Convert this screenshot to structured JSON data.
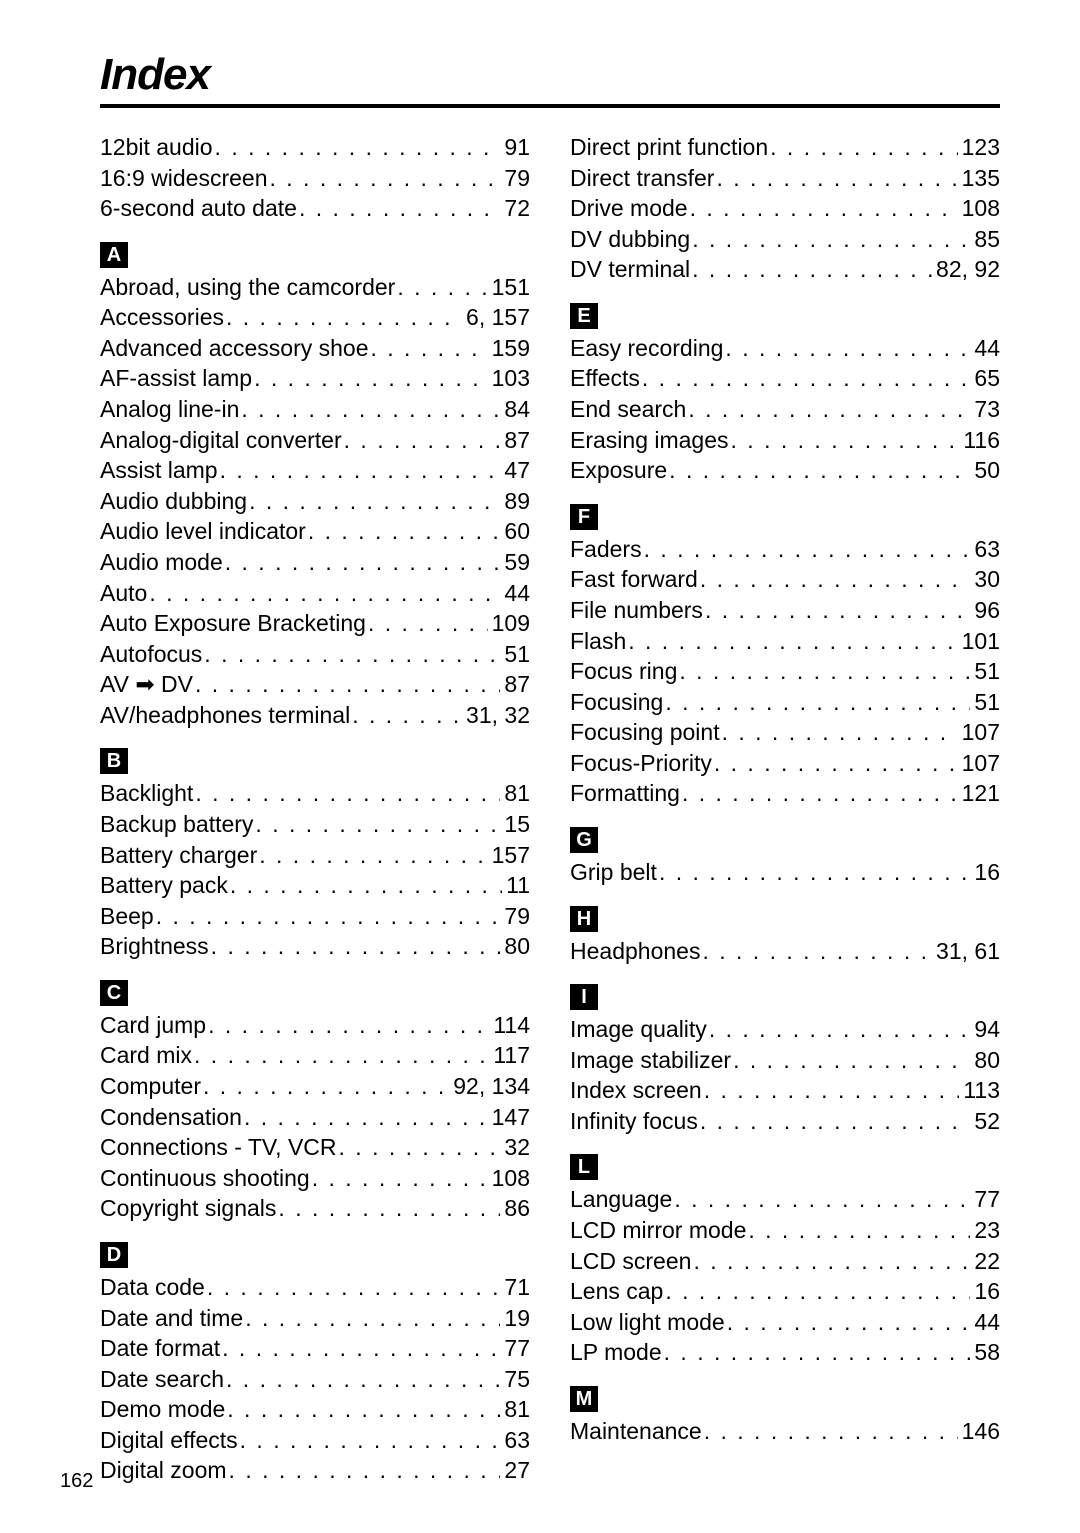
{
  "title": "Index",
  "pageNumber": "162",
  "columns": [
    {
      "groups": [
        {
          "letter": null,
          "entries": [
            {
              "term": "12bit audio",
              "page": "91"
            },
            {
              "term": "16:9 widescreen",
              "page": "79"
            },
            {
              "term": "6-second auto date",
              "page": "72"
            }
          ]
        },
        {
          "letter": "A",
          "entries": [
            {
              "term": "Abroad, using the camcorder",
              "page": "151"
            },
            {
              "term": "Accessories",
              "page": "6, 157"
            },
            {
              "term": "Advanced accessory shoe",
              "page": "159"
            },
            {
              "term": "AF-assist lamp",
              "page": "103"
            },
            {
              "term": "Analog line-in",
              "page": "84"
            },
            {
              "term": "Analog-digital converter",
              "page": "87"
            },
            {
              "term": "Assist lamp",
              "page": "47"
            },
            {
              "term": "Audio dubbing",
              "page": "89"
            },
            {
              "term": "Audio level indicator",
              "page": "60"
            },
            {
              "term": "Audio mode",
              "page": "59"
            },
            {
              "term": "Auto",
              "page": "44"
            },
            {
              "term": "Auto Exposure Bracketing",
              "page": "109"
            },
            {
              "term": "Autofocus",
              "page": "51"
            },
            {
              "term": "AV ➡ DV",
              "page": "87"
            },
            {
              "term": "AV/headphones terminal",
              "page": "31, 32"
            }
          ]
        },
        {
          "letter": "B",
          "entries": [
            {
              "term": "Backlight",
              "page": "81"
            },
            {
              "term": "Backup battery",
              "page": "15"
            },
            {
              "term": "Battery charger",
              "page": "157"
            },
            {
              "term": "Battery pack",
              "page": "11"
            },
            {
              "term": "Beep",
              "page": "79"
            },
            {
              "term": "Brightness",
              "page": "80"
            }
          ]
        },
        {
          "letter": "C",
          "entries": [
            {
              "term": "Card jump",
              "page": "114"
            },
            {
              "term": "Card mix",
              "page": "117"
            },
            {
              "term": "Computer",
              "page": "92, 134"
            },
            {
              "term": "Condensation",
              "page": "147"
            },
            {
              "term": "Connections - TV, VCR",
              "page": "32"
            },
            {
              "term": "Continuous shooting",
              "page": "108"
            },
            {
              "term": "Copyright signals",
              "page": "86"
            }
          ]
        },
        {
          "letter": "D",
          "entries": [
            {
              "term": "Data code",
              "page": "71"
            },
            {
              "term": "Date and time",
              "page": "19"
            },
            {
              "term": "Date format",
              "page": "77"
            },
            {
              "term": "Date search",
              "page": "75"
            },
            {
              "term": "Demo mode",
              "page": "81"
            },
            {
              "term": "Digital effects",
              "page": "63"
            },
            {
              "term": "Digital zoom",
              "page": "27"
            }
          ]
        }
      ]
    },
    {
      "groups": [
        {
          "letter": null,
          "entries": [
            {
              "term": "Direct print function",
              "page": "123"
            },
            {
              "term": "Direct transfer",
              "page": "135"
            },
            {
              "term": "Drive mode",
              "page": "108"
            },
            {
              "term": "DV dubbing",
              "page": "85"
            },
            {
              "term": "DV terminal",
              "page": "82, 92"
            }
          ]
        },
        {
          "letter": "E",
          "entries": [
            {
              "term": "Easy recording",
              "page": "44"
            },
            {
              "term": "Effects",
              "page": "65"
            },
            {
              "term": "End search",
              "page": "73"
            },
            {
              "term": "Erasing images",
              "page": "116"
            },
            {
              "term": "Exposure",
              "page": "50"
            }
          ]
        },
        {
          "letter": "F",
          "entries": [
            {
              "term": "Faders",
              "page": "63"
            },
            {
              "term": "Fast forward",
              "page": "30"
            },
            {
              "term": "File numbers",
              "page": "96"
            },
            {
              "term": "Flash",
              "page": "101"
            },
            {
              "term": "Focus ring",
              "page": "51"
            },
            {
              "term": "Focusing",
              "page": "51"
            },
            {
              "term": "Focusing point",
              "page": "107"
            },
            {
              "term": "Focus-Priority",
              "page": "107"
            },
            {
              "term": "Formatting",
              "page": "121"
            }
          ]
        },
        {
          "letter": "G",
          "entries": [
            {
              "term": "Grip belt",
              "page": "16"
            }
          ]
        },
        {
          "letter": "H",
          "entries": [
            {
              "term": "Headphones",
              "page": "31, 61"
            }
          ]
        },
        {
          "letter": "I",
          "entries": [
            {
              "term": "Image quality",
              "page": "94"
            },
            {
              "term": "Image stabilizer",
              "page": "80"
            },
            {
              "term": "Index screen",
              "page": "113"
            },
            {
              "term": "Infinity focus",
              "page": "52"
            }
          ]
        },
        {
          "letter": "L",
          "entries": [
            {
              "term": "Language",
              "page": "77"
            },
            {
              "term": "LCD mirror mode",
              "page": "23"
            },
            {
              "term": "LCD screen",
              "page": "22"
            },
            {
              "term": "Lens cap",
              "page": "16"
            },
            {
              "term": "Low light mode",
              "page": "44"
            },
            {
              "term": "LP mode",
              "page": "58"
            }
          ]
        },
        {
          "letter": "M",
          "entries": [
            {
              "term": "Maintenance",
              "page": "146"
            }
          ]
        }
      ]
    }
  ]
}
